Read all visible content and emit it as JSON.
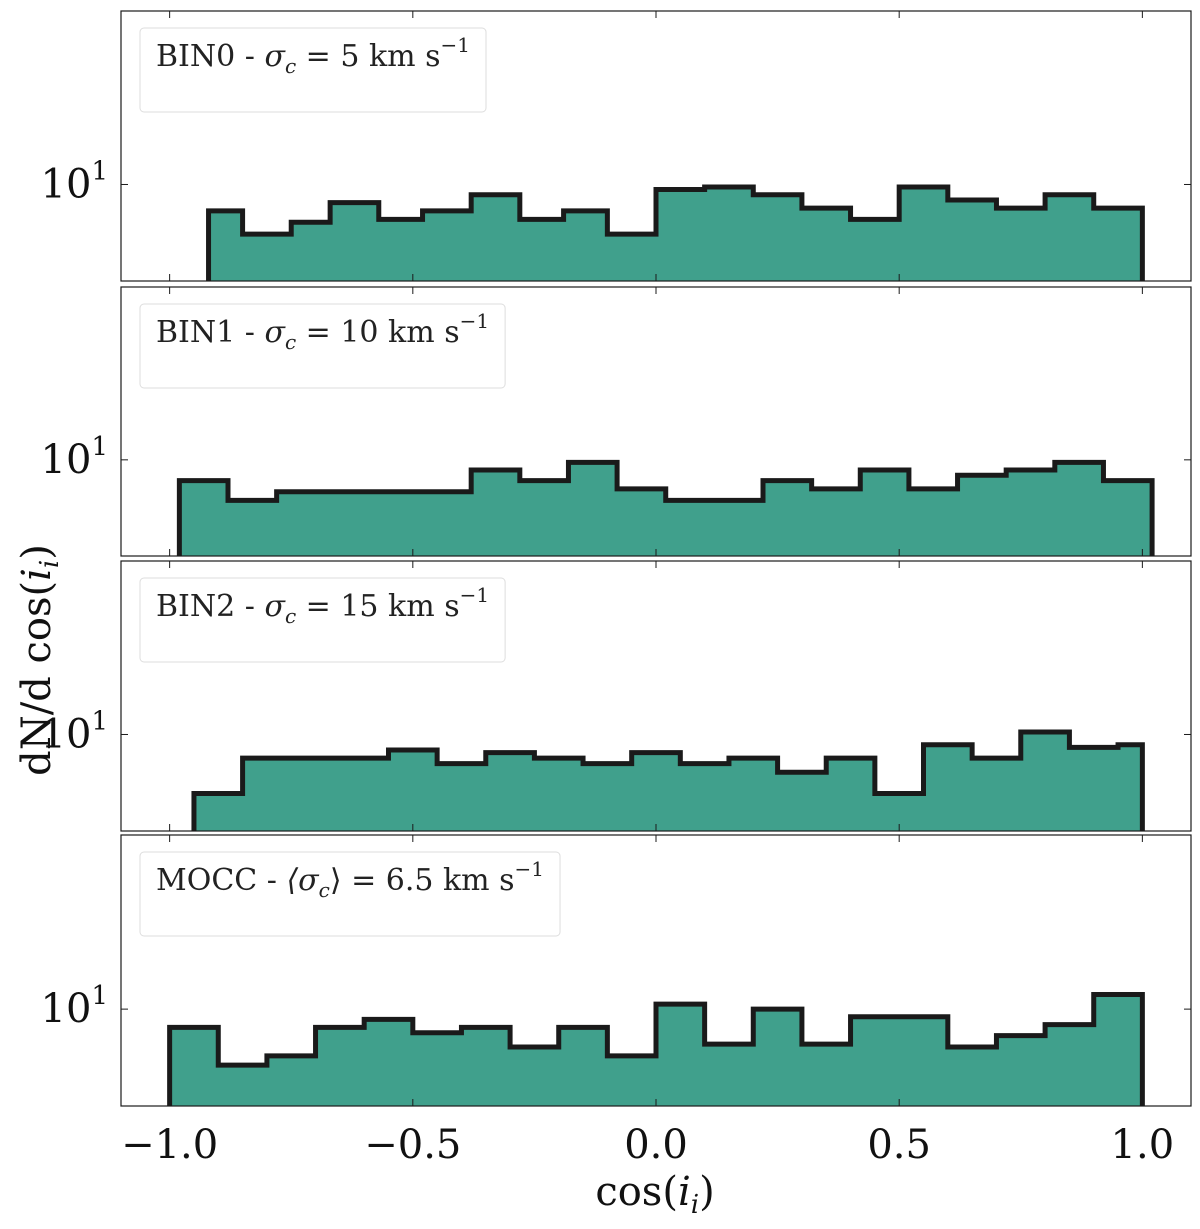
{
  "figure": {
    "xlabel_main": "cos(",
    "xlabel_var": "i",
    "xlabel_sub": "i",
    "xlabel_close": ")",
    "ylabel_main": "dN/d cos(",
    "ylabel_var": "i",
    "ylabel_sub": "i",
    "ylabel_close": ")",
    "fill_color": "#40a08c",
    "edge_color": "#1a1a1a"
  },
  "chart_data": [
    {
      "type": "histogram",
      "title": "BIN0 - σc = 5 km s−1",
      "legend_text": "BIN0 - ",
      "legend_sigma": "σ",
      "legend_sub": "c",
      "legend_rest": " = 5 km s",
      "legend_sup": "−1",
      "xlim": [
        -1.1,
        1.1
      ],
      "yscale": "log",
      "ylim": [
        6.8,
        20
      ],
      "ytick_value": 10,
      "ytick_base": "10",
      "ytick_exp": "1",
      "edges": [
        -0.92,
        -0.85,
        -0.75,
        -0.67,
        -0.57,
        -0.48,
        -0.38,
        -0.28,
        -0.19,
        -0.1,
        0.0,
        0.1,
        0.2,
        0.3,
        0.4,
        0.5,
        0.6,
        0.7,
        0.8,
        0.9,
        1.0
      ],
      "values": [
        9.0,
        8.2,
        8.6,
        9.3,
        8.7,
        9.0,
        9.6,
        8.7,
        9.0,
        8.2,
        9.8,
        9.9,
        9.6,
        9.1,
        8.7,
        9.9,
        9.4,
        9.1,
        9.6,
        9.1
      ]
    },
    {
      "type": "histogram",
      "title": "BIN1 - σc = 10 km s−1",
      "legend_text": "BIN1 - ",
      "legend_sigma": "σ",
      "legend_sub": "c",
      "legend_rest": " = 10 km s",
      "legend_sup": "−1",
      "xlim": [
        -1.1,
        1.1
      ],
      "yscale": "log",
      "ylim": [
        6.8,
        20
      ],
      "ytick_value": 10,
      "ytick_base": "10",
      "ytick_exp": "1",
      "edges": [
        -0.98,
        -0.88,
        -0.78,
        -0.68,
        -0.58,
        -0.48,
        -0.38,
        -0.28,
        -0.18,
        -0.08,
        0.02,
        0.12,
        0.22,
        0.32,
        0.42,
        0.52,
        0.62,
        0.72,
        0.82,
        0.92,
        1.02
      ],
      "values": [
        9.2,
        8.5,
        8.8,
        8.8,
        8.8,
        8.8,
        9.6,
        9.2,
        9.9,
        8.9,
        8.5,
        8.5,
        9.2,
        8.9,
        9.6,
        8.9,
        9.4,
        9.6,
        9.9,
        9.2
      ]
    },
    {
      "type": "histogram",
      "title": "BIN2 - σc = 15 km s−1",
      "legend_text": "BIN2 - ",
      "legend_sigma": "σ",
      "legend_sub": "c",
      "legend_rest": " = 15 km s",
      "legend_sup": "−1",
      "xlim": [
        -1.1,
        1.1
      ],
      "yscale": "log",
      "ylim": [
        6.8,
        20
      ],
      "ytick_value": 10,
      "ytick_base": "10",
      "ytick_exp": "1",
      "edges": [
        -0.95,
        -0.85,
        -0.75,
        -0.65,
        -0.55,
        -0.45,
        -0.35,
        -0.25,
        -0.15,
        -0.05,
        0.05,
        0.15,
        0.25,
        0.35,
        0.45,
        0.55,
        0.65,
        0.75,
        0.85,
        0.95,
        1.0
      ],
      "values": [
        7.9,
        9.1,
        9.1,
        9.1,
        9.4,
        8.9,
        9.3,
        9.1,
        8.9,
        9.3,
        8.9,
        9.1,
        8.6,
        9.1,
        7.9,
        9.6,
        9.1,
        10.1,
        9.5,
        9.6
      ]
    },
    {
      "type": "histogram",
      "title": "MOCC - ⟨σc⟩ = 6.5 km s−1",
      "legend_text": "MOCC - ",
      "legend_sigma": "⟨σ",
      "legend_sub": "c",
      "legend_rest": "⟩ = 6.5 km s",
      "legend_sup": "−1",
      "xlim": [
        -1.1,
        1.1
      ],
      "yscale": "log",
      "ylim": [
        6.8,
        20
      ],
      "ytick_value": 10,
      "ytick_base": "10",
      "ytick_exp": "1",
      "edges": [
        -1.0,
        -0.9,
        -0.8,
        -0.7,
        -0.6,
        -0.5,
        -0.4,
        -0.3,
        -0.2,
        -0.1,
        0.0,
        0.1,
        0.2,
        0.3,
        0.4,
        0.5,
        0.6,
        0.7,
        0.8,
        0.9,
        1.0
      ],
      "values": [
        9.3,
        8.0,
        8.3,
        9.3,
        9.6,
        9.1,
        9.3,
        8.6,
        9.3,
        8.3,
        10.2,
        8.7,
        10.0,
        8.7,
        9.7,
        9.7,
        8.6,
        9.0,
        9.4,
        10.6
      ]
    }
  ],
  "xticks": {
    "values": [
      -1.0,
      -0.5,
      0.0,
      0.5,
      1.0
    ],
    "labels": [
      "−1.0",
      "−0.5",
      "0.0",
      "0.5",
      "1.0"
    ]
  }
}
